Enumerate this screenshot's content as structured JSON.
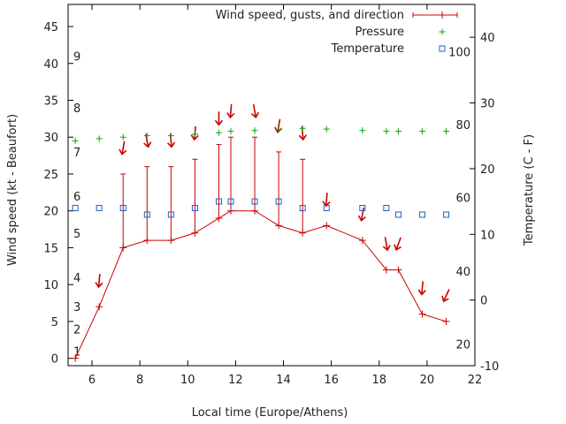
{
  "chart_data": {
    "type": "line",
    "title": "",
    "xlabel": "Local time (Europe/Athens)",
    "ylabel": "Wind speed (kt - Beaufort)",
    "y2label": "Temperature (C - F)",
    "xlim": [
      5,
      22
    ],
    "ylim": [
      -1,
      48
    ],
    "y2lim": [
      -10,
      45
    ],
    "x_ticks": [
      6,
      8,
      10,
      12,
      14,
      16,
      18,
      20,
      22
    ],
    "y_ticks": [
      0,
      5,
      10,
      15,
      20,
      25,
      30,
      35,
      40,
      45
    ],
    "y2_ticks": [
      -10,
      0,
      10,
      20,
      30,
      40
    ],
    "grid": false,
    "legend_position": "top-right",
    "beaufort_labels": [
      {
        "text": "1",
        "y": 1
      },
      {
        "text": "2",
        "y": 4
      },
      {
        "text": "3",
        "y": 7
      },
      {
        "text": "4",
        "y": 11
      },
      {
        "text": "5",
        "y": 17
      },
      {
        "text": "6",
        "y": 22
      },
      {
        "text": "7",
        "y": 28
      },
      {
        "text": "8",
        "y": 34
      },
      {
        "text": "9",
        "y": 41
      }
    ],
    "fahrenheit_labels": [
      {
        "text": "20",
        "y2": -6.7
      },
      {
        "text": "40",
        "y2": 4.4
      },
      {
        "text": "60",
        "y2": 15.6
      },
      {
        "text": "80",
        "y2": 26.7
      },
      {
        "text": "100",
        "y2": 37.8
      }
    ],
    "series": [
      {
        "name": "Wind speed, gusts, and direction",
        "color": "#cc0000",
        "x": [
          5.3,
          6.3,
          7.3,
          8.3,
          9.3,
          10.3,
          11.3,
          11.8,
          12.8,
          13.8,
          14.8,
          15.8,
          17.3,
          18.3,
          18.8,
          19.8,
          20.8
        ],
        "values": [
          0,
          7,
          15,
          16,
          16,
          17,
          19,
          20,
          20,
          18,
          17,
          18,
          16,
          12,
          12,
          6,
          5
        ],
        "gusts": [
          0,
          7,
          25,
          26,
          26,
          27,
          29,
          30,
          30,
          28,
          27,
          18,
          16,
          12,
          12,
          6,
          5
        ],
        "arrow_angles_deg": [
          0,
          5,
          10,
          350,
          355,
          5,
          0,
          5,
          350,
          10,
          355,
          5,
          10,
          350,
          20,
          5,
          25
        ],
        "arrow_y": [
          null,
          10.5,
          28.5,
          29.5,
          29.5,
          30.5,
          32.5,
          33.5,
          33.5,
          31.5,
          30.5,
          21.5,
          19.5,
          15.5,
          15.5,
          9.5,
          8.5
        ]
      },
      {
        "name": "Pressure",
        "color": "#00aa00",
        "axis": "y",
        "x": [
          5.3,
          6.3,
          7.3,
          8.3,
          9.3,
          10.3,
          11.3,
          11.8,
          12.8,
          13.8,
          14.8,
          15.8,
          17.3,
          18.3,
          18.8,
          19.8,
          20.8
        ],
        "values": [
          29.5,
          29.8,
          30,
          30.2,
          30.2,
          30.4,
          30.6,
          30.8,
          30.9,
          31,
          31.2,
          31.1,
          30.9,
          30.8,
          30.8,
          30.8,
          30.8
        ]
      },
      {
        "name": "Temperature",
        "color": "#1f5fbf",
        "axis": "y2",
        "x": [
          5.3,
          6.3,
          7.3,
          8.3,
          9.3,
          10.3,
          11.3,
          11.8,
          12.8,
          13.8,
          14.8,
          15.8,
          17.3,
          18.3,
          18.8,
          19.8,
          20.8
        ],
        "values": [
          14,
          14,
          14,
          13,
          13,
          14,
          15,
          15,
          15,
          15,
          14,
          14,
          14,
          14,
          13,
          13,
          13
        ]
      }
    ]
  }
}
